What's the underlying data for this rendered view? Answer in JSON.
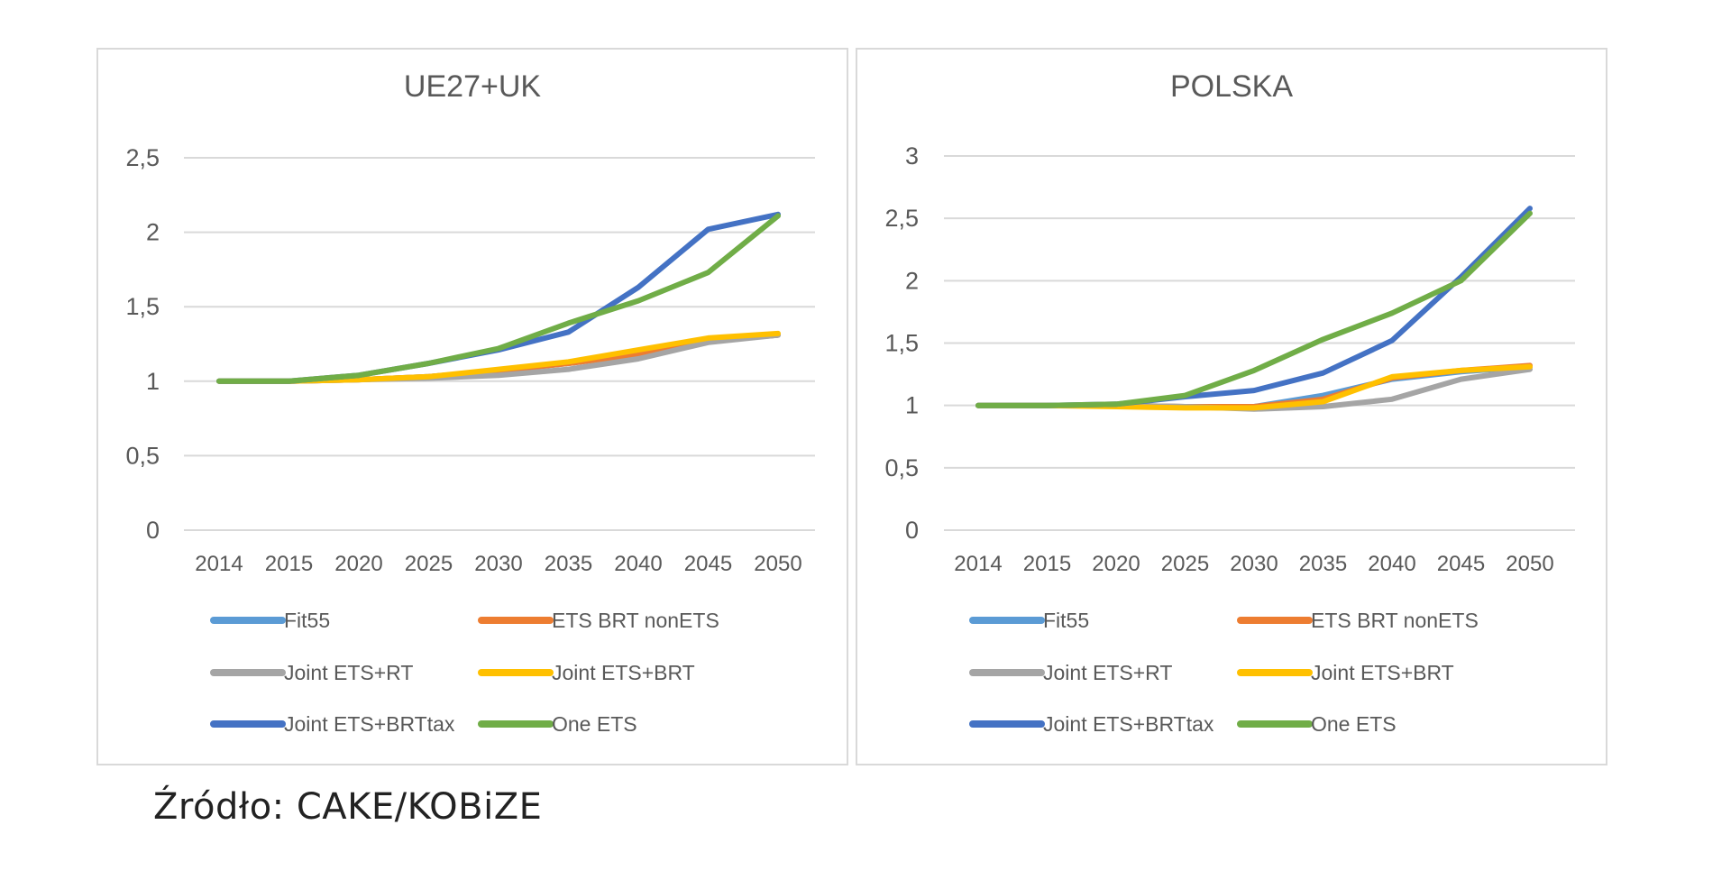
{
  "source": "Źródło: CAKE/KOBiZE",
  "chart_data": [
    {
      "type": "line",
      "title": "UE27+UK",
      "categories": [
        "2014",
        "2015",
        "2020",
        "2025",
        "2030",
        "2035",
        "2040",
        "2045",
        "2050"
      ],
      "ylim": [
        0,
        2.5
      ],
      "yticks": [
        "0",
        "0,5",
        "1",
        "1,5",
        "2",
        "2,5"
      ],
      "ytick_values": [
        0,
        0.5,
        1,
        1.5,
        2,
        2.5
      ],
      "grid": true,
      "legend_position": "bottom",
      "series": [
        {
          "name": "Fit55",
          "color": "#5b9bd5",
          "values": [
            1,
            1,
            1.01,
            1.03,
            1.07,
            1.12,
            1.18,
            1.27,
            1.31
          ]
        },
        {
          "name": "ETS BRT nonETS",
          "color": "#ed7d31",
          "values": [
            1,
            1,
            1.01,
            1.03,
            1.07,
            1.12,
            1.18,
            1.27,
            1.31
          ]
        },
        {
          "name": "Joint ETS+RT",
          "color": "#a5a5a5",
          "values": [
            1,
            1,
            1.01,
            1.02,
            1.04,
            1.08,
            1.15,
            1.26,
            1.31
          ]
        },
        {
          "name": "Joint ETS+BRT",
          "color": "#ffc000",
          "values": [
            1,
            1,
            1.01,
            1.03,
            1.08,
            1.13,
            1.21,
            1.29,
            1.32
          ]
        },
        {
          "name": "Joint ETS+BRTtax",
          "color": "#4472c4",
          "values": [
            1,
            1,
            1.04,
            1.12,
            1.21,
            1.33,
            1.63,
            2.02,
            2.12
          ]
        },
        {
          "name": "One ETS",
          "color": "#70ad47",
          "values": [
            1,
            1,
            1.04,
            1.12,
            1.22,
            1.39,
            1.54,
            1.73,
            2.11
          ]
        }
      ]
    },
    {
      "type": "line",
      "title": "POLSKA",
      "categories": [
        "2014",
        "2015",
        "2020",
        "2025",
        "2030",
        "2035",
        "2040",
        "2045",
        "2050"
      ],
      "ylim": [
        0,
        3
      ],
      "yticks": [
        "0",
        "0,5",
        "1",
        "1,5",
        "2",
        "2,5",
        "3"
      ],
      "ytick_values": [
        0,
        0.5,
        1,
        1.5,
        2,
        2.5,
        3
      ],
      "grid": true,
      "legend_position": "bottom",
      "series": [
        {
          "name": "Fit55",
          "color": "#5b9bd5",
          "values": [
            1,
            1,
            1.0,
            0.99,
            0.99,
            1.08,
            1.21,
            1.27,
            1.31
          ]
        },
        {
          "name": "ETS BRT nonETS",
          "color": "#ed7d31",
          "values": [
            1,
            1,
            1.0,
            0.99,
            0.99,
            1.05,
            1.22,
            1.28,
            1.32
          ]
        },
        {
          "name": "Joint ETS+RT",
          "color": "#a5a5a5",
          "values": [
            1,
            1,
            1.0,
            0.99,
            0.97,
            0.99,
            1.05,
            1.21,
            1.29
          ]
        },
        {
          "name": "Joint ETS+BRT",
          "color": "#ffc000",
          "values": [
            1,
            1,
            0.99,
            0.98,
            0.98,
            1.03,
            1.23,
            1.28,
            1.31
          ]
        },
        {
          "name": "Joint ETS+BRTtax",
          "color": "#4472c4",
          "values": [
            1,
            1,
            1.01,
            1.07,
            1.12,
            1.26,
            1.52,
            2.03,
            2.58
          ]
        },
        {
          "name": "One ETS",
          "color": "#70ad47",
          "values": [
            1,
            1,
            1.01,
            1.08,
            1.28,
            1.53,
            1.74,
            2.0,
            2.54
          ]
        }
      ]
    }
  ]
}
